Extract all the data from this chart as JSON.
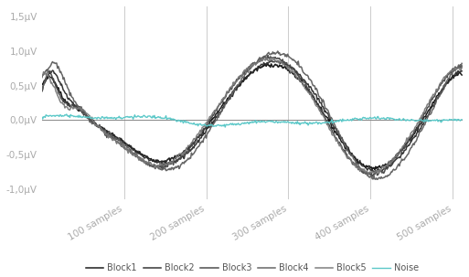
{
  "title": "",
  "xlabel": "",
  "ylabel": "",
  "ylim": [
    -1.15,
    1.65
  ],
  "xlim": [
    0,
    512
  ],
  "yticks": [
    -1.0,
    -0.5,
    0.0,
    0.5,
    1.0,
    1.5
  ],
  "ytick_labels": [
    "-1,0μV",
    "-0,5μV",
    "0,0μV",
    "0,5μV",
    "1,0μV",
    "1,5μV"
  ],
  "xticks": [
    100,
    200,
    300,
    400,
    500
  ],
  "xtick_labels": [
    "100 samples",
    "200 samples",
    "300 samples",
    "400 samples",
    "500 samples"
  ],
  "vline_color": "#cccccc",
  "hline_color": "#888888",
  "block_colors": [
    "#111111",
    "#2a2a2a",
    "#444444",
    "#5e5e5e",
    "#787878"
  ],
  "noise_color": "#5bc8c8",
  "legend_labels": [
    "Block1",
    "Block2",
    "Block3",
    "Block4",
    "Block5",
    "Noise"
  ],
  "background_color": "#ffffff",
  "tick_label_color": "#aaaaaa",
  "linewidth": 1.1,
  "noise_linewidth": 1.0,
  "n_samples": 512,
  "amp_scales": [
    0.82,
    0.87,
    0.93,
    1.0,
    0.9
  ],
  "timing_offsets": [
    0,
    3,
    -2,
    5,
    -4
  ],
  "noise_amplitude": 0.015
}
